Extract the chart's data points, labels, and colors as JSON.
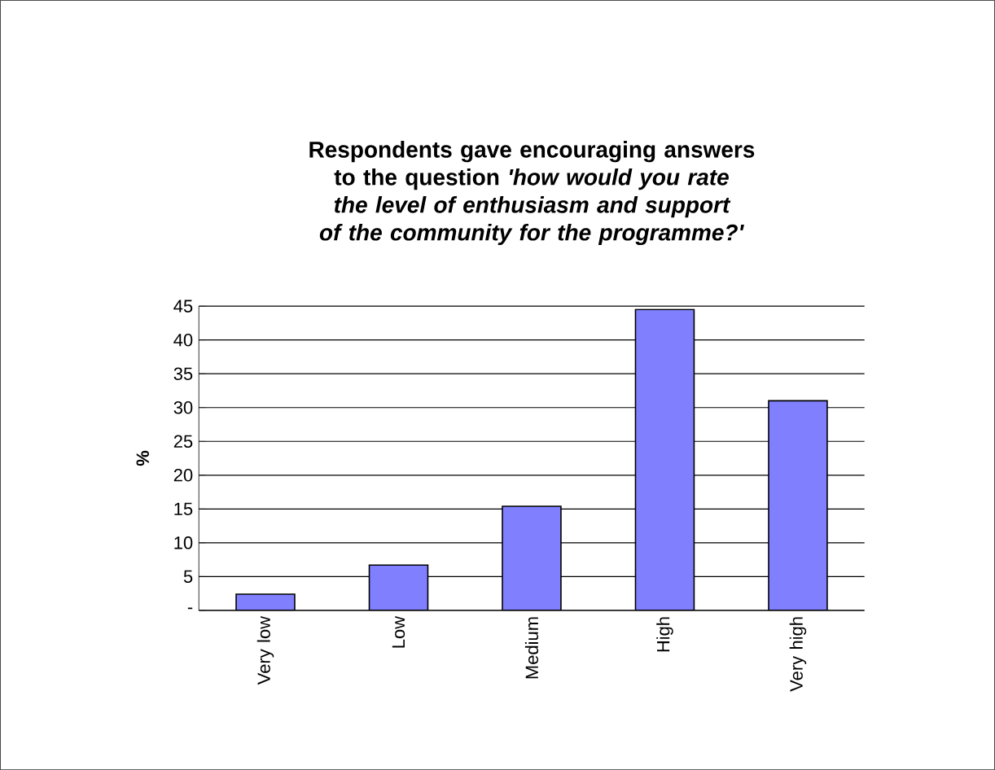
{
  "chart_data": {
    "type": "bar",
    "title": "Respondents gave encouraging answers to the question *'how would you rate the level of enthusiasm and support of the community for the programme?'*",
    "ylabel": "%",
    "categories": [
      "Very low",
      "Low",
      "Medium",
      "High",
      "Very high"
    ],
    "values": [
      2.4,
      6.7,
      15.4,
      44.5,
      31
    ],
    "color": "#8080ff",
    "ylim": [
      0,
      45
    ],
    "yticks": [
      {
        "value": 0,
        "label": "-"
      },
      5,
      10,
      15,
      20,
      25,
      30,
      35,
      40,
      45
    ],
    "grid": "y"
  }
}
